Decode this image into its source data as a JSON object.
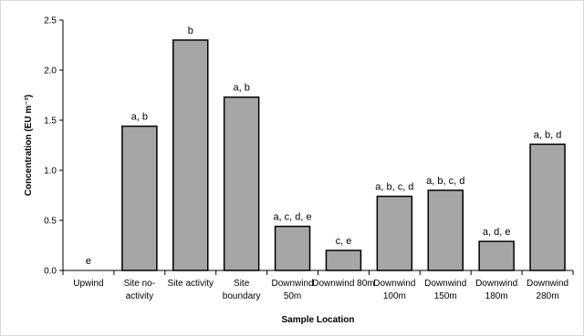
{
  "chart_data": {
    "type": "bar",
    "xlabel": "Sample Location",
    "ylabel": "Concentration (EU m⁻³)",
    "ylim": [
      0,
      2.5
    ],
    "yticks": [
      "0.0",
      "0.5",
      "1.0",
      "1.5",
      "2.0",
      "2.5"
    ],
    "grid": false,
    "bar_color": "#a6a6a6",
    "categories": [
      [
        "Upwind"
      ],
      [
        "Site no-",
        "activity"
      ],
      [
        "Site activity"
      ],
      [
        "Site",
        "boundary"
      ],
      [
        "Downwind",
        "50m"
      ],
      [
        "Downwind 80m"
      ],
      [
        "Downwind",
        "100m"
      ],
      [
        "Downwind",
        "150m"
      ],
      [
        "Downwind",
        "180m"
      ],
      [
        "Downwind",
        "280m"
      ]
    ],
    "values": [
      0,
      1.44,
      2.3,
      1.73,
      0.44,
      0.2,
      0.74,
      0.8,
      0.29,
      1.26
    ],
    "annotations": [
      "e",
      "a, b",
      "b",
      "a, b",
      "a, c, d, e",
      "c, e",
      "a, b, c, d",
      "a, b, c, d",
      "a, d, e",
      "a, b, d"
    ]
  }
}
